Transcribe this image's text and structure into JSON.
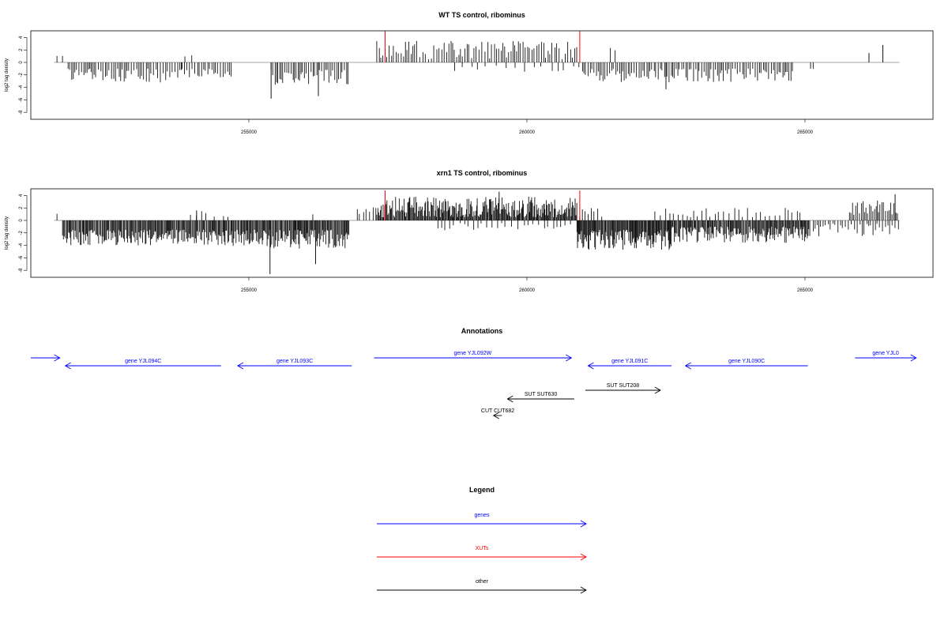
{
  "chart_data": [
    {
      "type": "bar",
      "title": "WT TS control, ribominus",
      "ylabel": "log2 tag density",
      "xlim": [
        251000,
        267000
      ],
      "ylim": [
        -9,
        6
      ],
      "xticks": [
        255000,
        260000,
        265000
      ],
      "yticks": [
        4,
        2,
        0,
        -2,
        -4,
        -6,
        -8
      ],
      "ytick_labels": [
        "4",
        "2",
        "0",
        "-2",
        "-4",
        "-6",
        "-8"
      ],
      "baseline": [
        251500,
        266700
      ],
      "segments": [
        {
          "from": 251550,
          "to": 251700,
          "min": 1.0,
          "max": 1.2,
          "sign": "pos",
          "step": 150
        },
        {
          "from": 251750,
          "to": 253800,
          "min": 1.0,
          "max": 3.2,
          "sign": "neg",
          "step": 38
        },
        {
          "from": 253850,
          "to": 254050,
          "min": 0.8,
          "max": 1.2,
          "sign": "pos",
          "step": 100
        },
        {
          "from": 253800,
          "to": 254700,
          "min": 1.0,
          "max": 2.4,
          "sign": "neg",
          "step": 40
        },
        {
          "from": 255400,
          "to": 256800,
          "min": 1.2,
          "max": 3.6,
          "sign": "neg",
          "step": 32
        },
        {
          "from": 257300,
          "to": 260900,
          "min": 0.5,
          "max": 3.5,
          "sign": "pos",
          "step": 42
        },
        {
          "from": 258700,
          "to": 261000,
          "min": 0.5,
          "max": 1.5,
          "sign": "neg",
          "step": 150
        },
        {
          "from": 261000,
          "to": 264800,
          "min": 1.0,
          "max": 3.2,
          "sign": "neg",
          "step": 36
        },
        {
          "from": 261500,
          "to": 261600,
          "min": 1.8,
          "max": 2.4,
          "sign": "pos",
          "step": 100
        },
        {
          "from": 265100,
          "to": 265150,
          "min": 1.0,
          "max": 1.3,
          "sign": "neg",
          "step": 50
        }
      ],
      "points": [
        {
          "x": 255400,
          "y": -5.8
        },
        {
          "x": 256250,
          "y": -5.4
        },
        {
          "x": 262500,
          "y": -4.3
        },
        {
          "x": 266150,
          "y": 1.5
        },
        {
          "x": 266400,
          "y": 2.8
        }
      ],
      "xut_marks": [
        {
          "x": 257450,
          "y": 5.0
        },
        {
          "x": 260950,
          "y": 5.0
        }
      ]
    },
    {
      "type": "bar",
      "title": "xrn1 TS control, ribominus",
      "ylabel": "log2 tag density",
      "xlim": [
        251000,
        267000
      ],
      "ylim": [
        -9,
        6
      ],
      "xticks": [
        255000,
        260000,
        265000
      ],
      "yticks": [
        4,
        2,
        0,
        -2,
        -4,
        -6,
        -8
      ],
      "ytick_labels": [
        "4",
        "2",
        "0",
        "-2",
        "-4",
        "-6",
        "-8"
      ],
      "baseline": [
        251500,
        266700
      ],
      "segments": [
        {
          "from": 251550,
          "to": 251600,
          "min": 1.0,
          "max": 1.3,
          "sign": "pos",
          "step": 50
        },
        {
          "from": 251650,
          "to": 254700,
          "min": 1.5,
          "max": 4.0,
          "sign": "neg",
          "step": 17
        },
        {
          "from": 253950,
          "to": 254650,
          "min": 0.5,
          "max": 1.5,
          "sign": "pos",
          "step": 120
        },
        {
          "from": 254700,
          "to": 256800,
          "min": 1.5,
          "max": 4.6,
          "sign": "neg",
          "step": 16
        },
        {
          "from": 256150,
          "to": 256250,
          "min": 0.5,
          "max": 1.0,
          "sign": "pos",
          "step": 100
        },
        {
          "from": 256950,
          "to": 257300,
          "min": 1.0,
          "max": 2.2,
          "sign": "pos",
          "step": 60
        },
        {
          "from": 257300,
          "to": 260900,
          "min": 0.5,
          "max": 3.8,
          "sign": "pos",
          "step": 15
        },
        {
          "from": 258400,
          "to": 260900,
          "min": 0.4,
          "max": 1.6,
          "sign": "neg",
          "step": 90
        },
        {
          "from": 260950,
          "to": 261400,
          "min": 0.6,
          "max": 2.0,
          "sign": "pos",
          "step": 70
        },
        {
          "from": 260900,
          "to": 262600,
          "min": 1.5,
          "max": 4.8,
          "sign": "neg",
          "step": 14
        },
        {
          "from": 262600,
          "to": 265100,
          "min": 1.0,
          "max": 3.6,
          "sign": "neg",
          "step": 16
        },
        {
          "from": 262300,
          "to": 265000,
          "min": 0.5,
          "max": 2.0,
          "sign": "pos",
          "step": 75
        },
        {
          "from": 265150,
          "to": 266700,
          "min": 0.5,
          "max": 2.6,
          "sign": "neg",
          "step": 45
        },
        {
          "from": 265800,
          "to": 266700,
          "min": 0.8,
          "max": 3.2,
          "sign": "pos",
          "step": 30
        }
      ],
      "points": [
        {
          "x": 255380,
          "y": -8.6
        },
        {
          "x": 256200,
          "y": -7.0
        },
        {
          "x": 254060,
          "y": 1.6
        },
        {
          "x": 266620,
          "y": 4.2
        },
        {
          "x": 259500,
          "y": 4.6
        }
      ],
      "xut_marks": [
        {
          "x": 257450,
          "y": 4.8
        },
        {
          "x": 260950,
          "y": 4.8
        }
      ]
    }
  ],
  "annotations": {
    "title": "Annotations",
    "items": [
      {
        "label": "",
        "start": 251000,
        "end": 251600,
        "strand": "+",
        "color": "#0000ff",
        "row": 0
      },
      {
        "label": "gene YJL094C",
        "start": 251700,
        "end": 254500,
        "strand": "-",
        "color": "#0000ff",
        "row": 1
      },
      {
        "label": "gene YJL093C",
        "start": 254800,
        "end": 256850,
        "strand": "-",
        "color": "#0000ff",
        "row": 1
      },
      {
        "label": "gene YJL092W",
        "start": 257250,
        "end": 260800,
        "strand": "+",
        "color": "#0000ff",
        "row": 0
      },
      {
        "label": "gene YJL091C",
        "start": 261100,
        "end": 262600,
        "strand": "-",
        "color": "#0000ff",
        "row": 1
      },
      {
        "label": "gene YJL090C",
        "start": 262850,
        "end": 265050,
        "strand": "-",
        "color": "#0000ff",
        "row": 1
      },
      {
        "label": "gene YJL0",
        "start": 265900,
        "end": 267000,
        "strand": "+",
        "color": "#0000ff",
        "row": 0
      },
      {
        "label": "SUT SUT208",
        "start": 261050,
        "end": 262400,
        "strand": "+",
        "color": "#000000",
        "row": 4
      },
      {
        "label": "SUT SUT630",
        "start": 259650,
        "end": 260850,
        "strand": "-",
        "color": "#000000",
        "row": 5
      },
      {
        "label": "CUT CUT682",
        "start": 259400,
        "end": 259550,
        "strand": "-",
        "color": "#000000",
        "row": 7
      }
    ]
  },
  "legend": {
    "title": "Legend",
    "items": [
      {
        "label": "genes",
        "color": "#0000ff"
      },
      {
        "label": "XUTs",
        "color": "#ff0000"
      },
      {
        "label": "other",
        "color": "#000000"
      }
    ]
  }
}
